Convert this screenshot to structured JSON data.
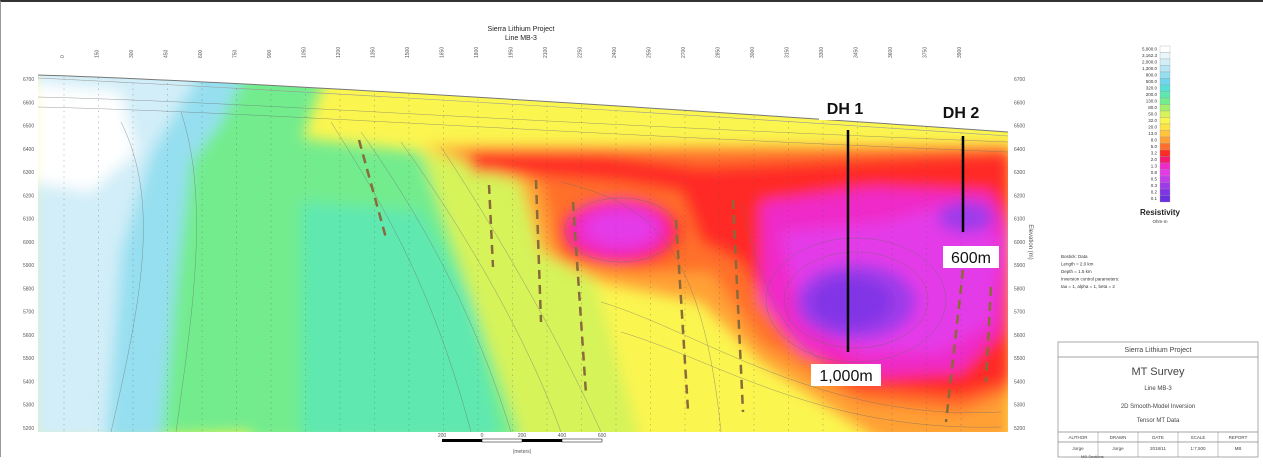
{
  "section": {
    "title": "Sierra Lithium Project",
    "line": "Line MB-3",
    "y_axis_label": "Elevation (m)"
  },
  "top_ticks": [
    "0",
    "150",
    "300",
    "450",
    "600",
    "750",
    "900",
    "1050",
    "1200",
    "1350",
    "1500",
    "1650",
    "1800",
    "1950",
    "2100",
    "2250",
    "2400",
    "2550",
    "2700",
    "2850",
    "3000",
    "3150",
    "3300",
    "3450",
    "3600",
    "3750",
    "3900"
  ],
  "left_ticks": [
    "6700",
    "6600",
    "6500",
    "6400",
    "6300",
    "6200",
    "6100",
    "6000",
    "5900",
    "5800",
    "5700",
    "5600",
    "5500",
    "5400",
    "5300",
    "5200"
  ],
  "right_ticks": [
    "6700",
    "6600",
    "6500",
    "6400",
    "6300",
    "6200",
    "6100",
    "6000",
    "5900",
    "5800",
    "5700",
    "5600",
    "5500",
    "5400",
    "5300",
    "5200"
  ],
  "drillholes": [
    {
      "name": "DH 1",
      "depth_label": "1,000m"
    },
    {
      "name": "DH 2",
      "depth_label": "600m"
    }
  ],
  "legend": {
    "values": [
      "5,000.0",
      "3,162.3",
      "2,000.0",
      "1,300.0",
      "800.0",
      "500.0",
      "320.0",
      "200.0",
      "130.0",
      "80.0",
      "50.0",
      "32.0",
      "20.0",
      "13.0",
      "8.0",
      "5.0",
      "3.2",
      "2.0",
      "1.3",
      "0.8",
      "0.5",
      "0.3",
      "0.2",
      "0.1"
    ],
    "colors": [
      "#ffffff",
      "#e9f6fb",
      "#d2eef8",
      "#b7e6f4",
      "#96dff0",
      "#6fd6ee",
      "#58e0d6",
      "#5ee8b0",
      "#73ec8e",
      "#a4f06e",
      "#d6f35a",
      "#fbf550",
      "#ffe246",
      "#ffc43c",
      "#ffa035",
      "#ff6f2c",
      "#ff2b25",
      "#f51a6e",
      "#ef29c8",
      "#e43ae8",
      "#c23ce9",
      "#9f3aea",
      "#8134e6",
      "#6a2fe0"
    ],
    "title": "Resistivity",
    "unit": "Ohm-m"
  },
  "params": [
    "Bostick: Data",
    "Length = 2.0 km",
    "Depth = 1.5 km",
    "Inversion control parameters:",
    "tau = 1, alpha = 1, beta = 2"
  ],
  "scale_bar": {
    "labels": [
      "200",
      "0",
      "200",
      "400",
      "600"
    ],
    "unit": "(meters)"
  },
  "title_block": {
    "project": "Sierra Lithium Project",
    "survey": "MT Survey",
    "line": "Line MB-3",
    "model": "2D Smooth-Model Inversion",
    "data": "Tensor MT Data",
    "headers": [
      "AUTHOR",
      "DRAWN",
      "DATE",
      "SCALE",
      "REPORT"
    ],
    "row": [
      "Jorge",
      "Jorge",
      "2018/11",
      "1:7,500",
      "MB"
    ],
    "note": "MB-Sections"
  }
}
